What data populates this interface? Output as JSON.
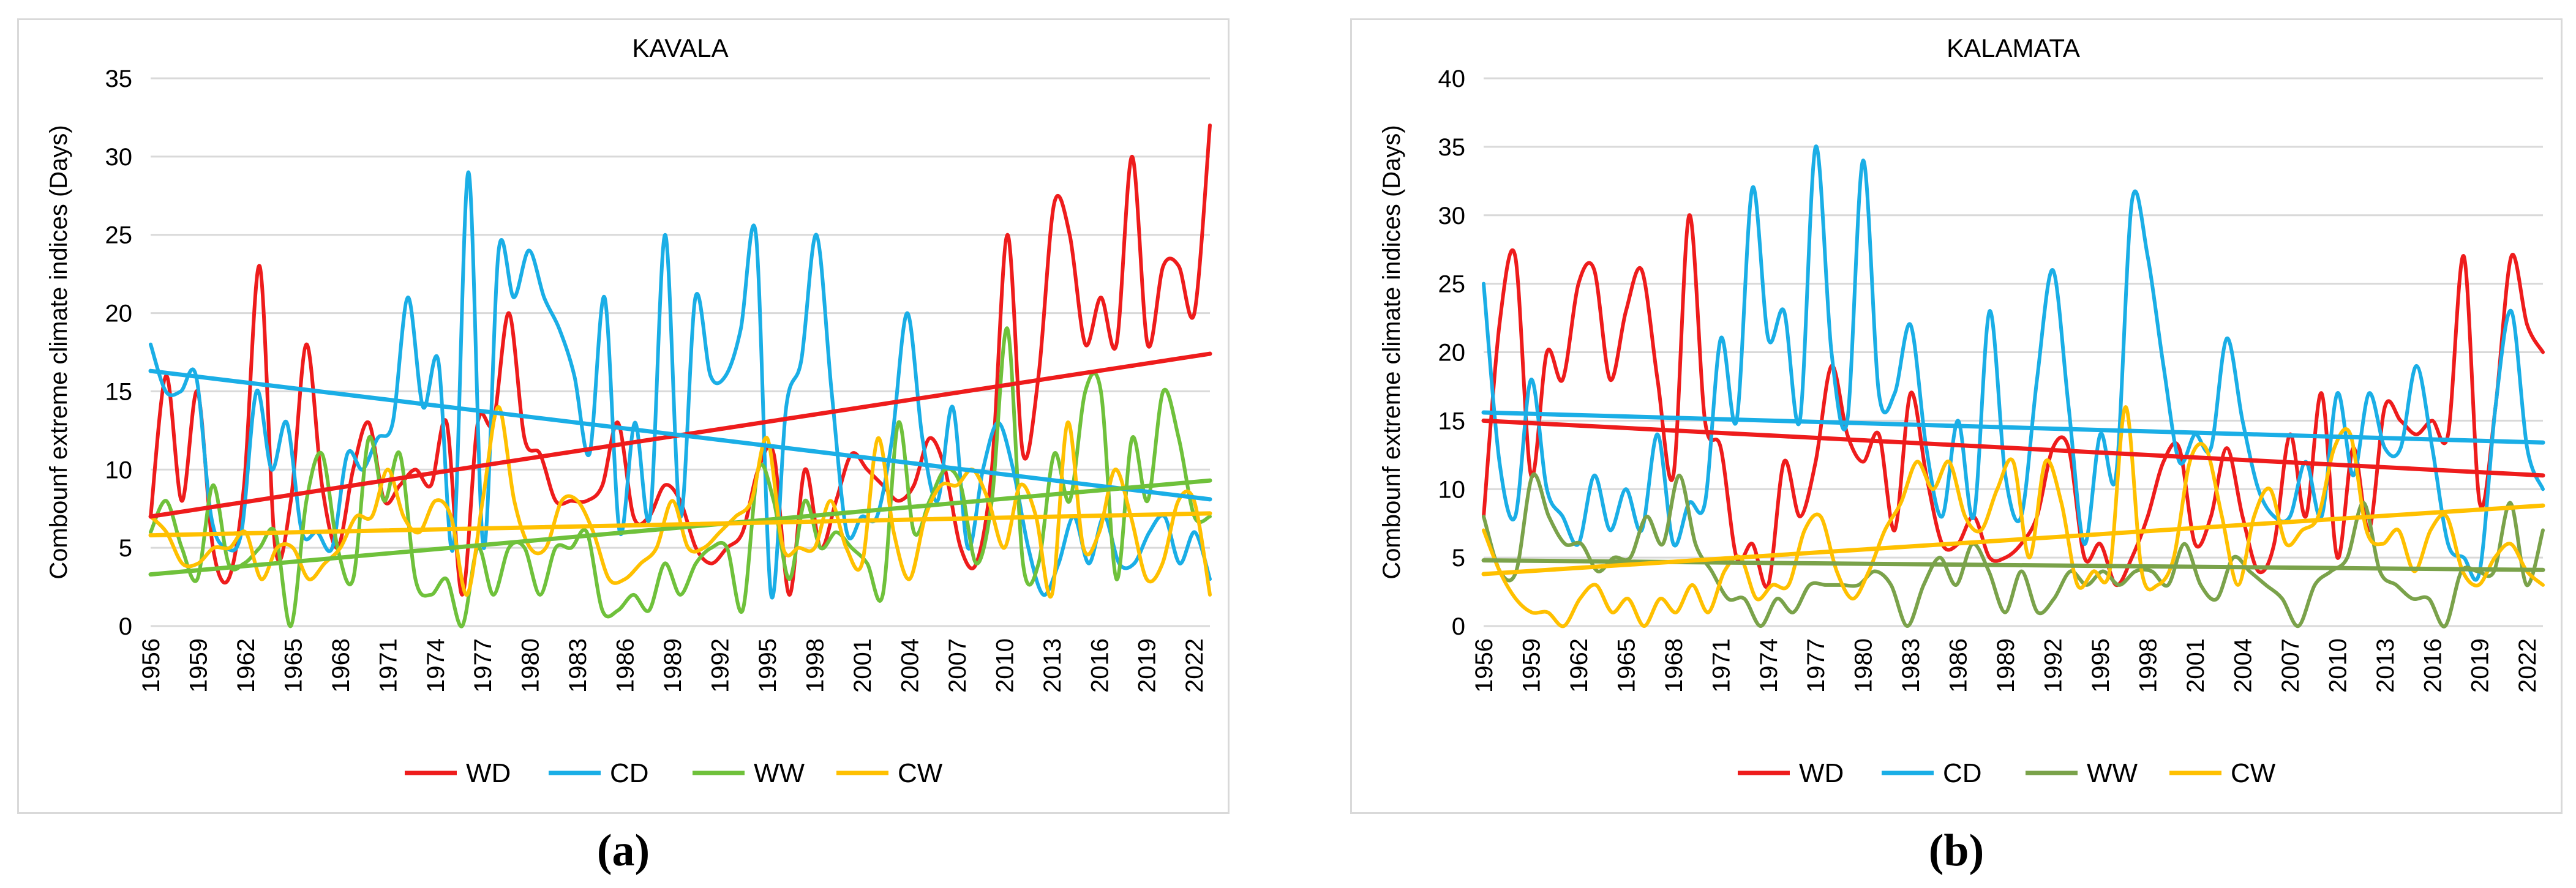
{
  "captions": [
    "(a)",
    "(b)"
  ],
  "colors": {
    "WD": "#ee1c1c",
    "CD": "#1aaee6",
    "WW": "#6fc13b",
    "CW": "#ffc000",
    "WW_b": "#7aa24a",
    "grid": "#d9d9d9",
    "text": "#000000"
  },
  "chart_data": [
    {
      "type": "line",
      "title": "KAVALA",
      "ylabel": "Combounf extreme climate indices (Days)",
      "xlabel": "",
      "ylim": [
        0,
        35
      ],
      "yticks": [
        0,
        5,
        10,
        15,
        20,
        25,
        30,
        35
      ],
      "xlim": [
        1956,
        2023
      ],
      "xtick_labels": [
        "1956",
        "1959",
        "1962",
        "1965",
        "1968",
        "1971",
        "1974",
        "1977",
        "1980",
        "1983",
        "1986",
        "1989",
        "1992",
        "1995",
        "1998",
        "2001",
        "2004",
        "2007",
        "2010",
        "2013",
        "2016",
        "2019",
        "2022"
      ],
      "legend_position": "bottom",
      "grid": true,
      "series": [
        {
          "name": "WD",
          "color": "#ee1c1c",
          "values": [
            7,
            16,
            8,
            15,
            5,
            3,
            9,
            23,
            5,
            8,
            18,
            9,
            5,
            10,
            13,
            8,
            9,
            10,
            9,
            13,
            2,
            13,
            13,
            20,
            12,
            11,
            8,
            8,
            8,
            9,
            13,
            7,
            7,
            9,
            8,
            5,
            4,
            5,
            6,
            10,
            11,
            2,
            10,
            5,
            8,
            11,
            10,
            9,
            8,
            9,
            12,
            10,
            5,
            4,
            10,
            25,
            11,
            16,
            27,
            25,
            18,
            21,
            18,
            30,
            18,
            23,
            23,
            20,
            32
          ],
          "trend": [
            7.0,
            17.4
          ]
        },
        {
          "name": "CD",
          "color": "#1aaee6",
          "values": [
            18,
            15,
            15,
            16,
            7,
            5,
            6,
            15,
            10,
            13,
            6,
            6,
            5,
            11,
            10,
            12,
            13,
            21,
            14,
            17,
            5,
            29,
            5,
            24,
            21,
            24,
            21,
            19,
            16,
            11,
            21,
            6,
            13,
            7,
            25,
            7,
            21,
            16,
            16,
            19,
            25,
            2,
            14,
            17,
            25,
            15,
            6,
            7,
            7,
            12,
            20,
            12,
            8,
            14,
            5,
            10,
            13,
            10,
            5,
            2,
            4,
            7,
            4,
            7,
            4,
            4,
            6,
            7,
            4,
            6,
            3
          ],
          "trend": [
            16.3,
            8.1
          ]
        },
        {
          "name": "WW",
          "color": "#6fc13b",
          "values": [
            6,
            8,
            5,
            3,
            9,
            4,
            4,
            5,
            6,
            0,
            8,
            11,
            5,
            3,
            12,
            8,
            11,
            3,
            2,
            3,
            0,
            5,
            2,
            5,
            5,
            2,
            5,
            5,
            6,
            1,
            1,
            2,
            1,
            4,
            2,
            4,
            5,
            5,
            1,
            10,
            8,
            3,
            8,
            5,
            6,
            5,
            4,
            2,
            13,
            6,
            8,
            10,
            9,
            4,
            8,
            19,
            4,
            4,
            11,
            8,
            15,
            15,
            3,
            12,
            8,
            15,
            12,
            7,
            7
          ],
          "trend": [
            3.3,
            9.3
          ]
        },
        {
          "name": "CW",
          "color": "#ffc000",
          "values": [
            7,
            6,
            4,
            4,
            5,
            5,
            6,
            3,
            5,
            5,
            3,
            4,
            5,
            7,
            7,
            10,
            7,
            6,
            8,
            7,
            2,
            8,
            14,
            8,
            5,
            5,
            8,
            8,
            6,
            3,
            3,
            4,
            5,
            8,
            5,
            5,
            6,
            7,
            8,
            12,
            5,
            5,
            5,
            8,
            5,
            4,
            12,
            6,
            3,
            7,
            9,
            9,
            10,
            8,
            5,
            9,
            7,
            2,
            13,
            5,
            6,
            10,
            7,
            3,
            4,
            8,
            8,
            2
          ],
          "trend": [
            5.8,
            7.2
          ]
        }
      ]
    },
    {
      "type": "line",
      "title": "KALAMATA",
      "ylabel": "Combounf extreme climate indices (Days)",
      "xlabel": "",
      "ylim": [
        0,
        40
      ],
      "yticks": [
        0,
        5,
        10,
        15,
        20,
        25,
        30,
        35,
        40
      ],
      "xlim": [
        1956,
        2023
      ],
      "xtick_labels": [
        "1956",
        "1959",
        "1962",
        "1965",
        "1968",
        "1971",
        "1974",
        "1977",
        "1980",
        "1983",
        "1986",
        "1989",
        "1992",
        "1995",
        "1998",
        "2001",
        "2004",
        "2007",
        "2010",
        "2013",
        "2016",
        "2019",
        "2022"
      ],
      "legend_position": "bottom",
      "grid": true,
      "series": [
        {
          "name": "WD",
          "color": "#ee1c1c",
          "values": [
            8,
            22,
            27,
            11,
            20,
            18,
            25,
            26,
            18,
            23,
            26,
            18,
            11,
            30,
            15,
            13,
            5,
            6,
            3,
            12,
            8,
            12,
            19,
            14,
            12,
            14,
            7,
            17,
            11,
            6,
            6,
            8,
            5,
            5,
            6,
            8,
            13,
            13,
            5,
            6,
            3,
            5,
            8,
            12,
            13,
            6,
            8,
            13,
            8,
            4,
            6,
            14,
            8,
            17,
            5,
            13,
            7,
            16,
            15,
            14,
            15,
            14,
            27,
            9,
            16,
            27,
            22,
            20
          ],
          "trend": [
            15.0,
            11.0
          ]
        },
        {
          "name": "CD",
          "color": "#1aaee6",
          "values": [
            25,
            12,
            8,
            18,
            10,
            8,
            6,
            11,
            7,
            10,
            7,
            14,
            6,
            9,
            9,
            21,
            15,
            32,
            21,
            23,
            15,
            35,
            20,
            15,
            34,
            17,
            17,
            22,
            13,
            8,
            15,
            8,
            23,
            11,
            8,
            18,
            26,
            16,
            6,
            14,
            11,
            31,
            27,
            19,
            12,
            14,
            13,
            21,
            15,
            10,
            8,
            8,
            12,
            8,
            17,
            11,
            17,
            13,
            13,
            19,
            13,
            6,
            5,
            4,
            16,
            23,
            13,
            10
          ],
          "trend": [
            15.6,
            13.4
          ]
        },
        {
          "name": "WW",
          "color": "#7aa24a",
          "values": [
            8,
            4,
            4,
            11,
            8,
            6,
            6,
            4,
            5,
            5,
            8,
            6,
            11,
            6,
            4,
            2,
            2,
            0,
            2,
            1,
            3,
            3,
            3,
            3,
            4,
            3,
            0,
            3,
            5,
            3,
            6,
            4,
            1,
            4,
            1,
            2,
            4,
            3,
            4,
            3,
            4,
            4,
            3,
            6,
            3,
            2,
            5,
            4,
            3,
            2,
            0,
            3,
            4,
            5,
            9,
            4,
            3,
            2,
            2,
            0,
            4,
            4,
            4,
            9,
            3,
            7
          ],
          "trend": [
            4.8,
            4.1
          ]
        },
        {
          "name": "CW",
          "color": "#ffc000",
          "values": [
            7,
            4,
            2,
            1,
            1,
            0,
            2,
            3,
            1,
            2,
            0,
            2,
            1,
            3,
            1,
            4,
            5,
            2,
            3,
            3,
            7,
            8,
            4,
            2,
            4,
            7,
            9,
            12,
            10,
            12,
            8,
            7,
            10,
            12,
            5,
            12,
            9,
            3,
            4,
            4,
            16,
            4,
            3,
            5,
            12,
            13,
            8,
            3,
            8,
            10,
            6,
            7,
            8,
            13,
            14,
            7,
            6,
            7,
            4,
            7,
            8,
            4,
            3,
            5,
            6,
            4,
            3
          ],
          "trend": [
            3.8,
            8.8
          ]
        }
      ]
    }
  ]
}
